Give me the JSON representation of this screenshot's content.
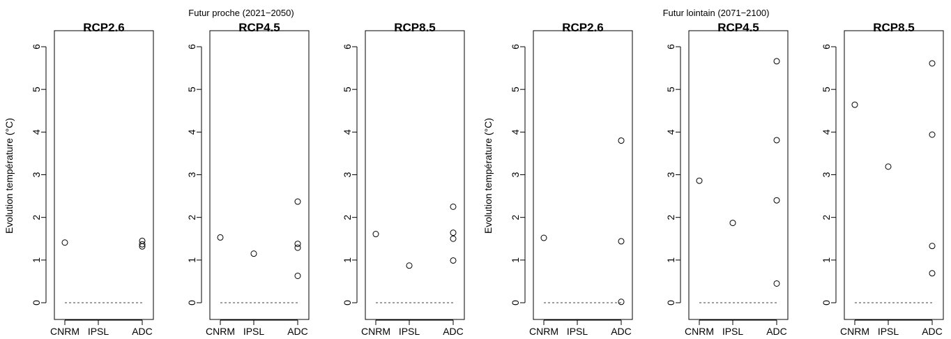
{
  "chart_data": [
    {
      "type": "scatter",
      "group": "Futur proche (2021−2050)",
      "title": "RCP2.6",
      "ylabel": "Evolution température (°C)",
      "categories": [
        "CNRM",
        "IPSL",
        "ADC"
      ],
      "ylim": [
        0,
        6
      ],
      "yticks": [
        0,
        1,
        2,
        3,
        4,
        5,
        6
      ],
      "reference_line": 0,
      "points": [
        {
          "x": "CNRM",
          "y": 1.41
        },
        {
          "x": "ADC",
          "y": 1.45
        },
        {
          "x": "ADC",
          "y": 1.37
        },
        {
          "x": "ADC",
          "y": 1.32
        }
      ]
    },
    {
      "type": "scatter",
      "group": "Futur proche (2021−2050)",
      "title": "RCP4.5",
      "ylabel": "",
      "categories": [
        "CNRM",
        "IPSL",
        "ADC"
      ],
      "ylim": [
        0,
        6
      ],
      "yticks": [
        0,
        1,
        2,
        3,
        4,
        5,
        6
      ],
      "reference_line": 0,
      "points": [
        {
          "x": "CNRM",
          "y": 1.53
        },
        {
          "x": "IPSL",
          "y": 1.15
        },
        {
          "x": "ADC",
          "y": 2.37
        },
        {
          "x": "ADC",
          "y": 1.38
        },
        {
          "x": "ADC",
          "y": 1.29
        },
        {
          "x": "ADC",
          "y": 0.63
        }
      ]
    },
    {
      "type": "scatter",
      "group": "Futur proche (2021−2050)",
      "title": "RCP8.5",
      "ylabel": "",
      "categories": [
        "CNRM",
        "IPSL",
        "ADC"
      ],
      "ylim": [
        0,
        6
      ],
      "yticks": [
        0,
        1,
        2,
        3,
        4,
        5,
        6
      ],
      "reference_line": 0,
      "points": [
        {
          "x": "CNRM",
          "y": 1.61
        },
        {
          "x": "IPSL",
          "y": 0.87
        },
        {
          "x": "ADC",
          "y": 2.25
        },
        {
          "x": "ADC",
          "y": 1.64
        },
        {
          "x": "ADC",
          "y": 1.5
        },
        {
          "x": "ADC",
          "y": 0.99
        }
      ]
    },
    {
      "type": "scatter",
      "group": "Futur lointain (2071−2100)",
      "title": "RCP2.6",
      "ylabel": "Evolution température (°C)",
      "categories": [
        "CNRM",
        "IPSL",
        "ADC"
      ],
      "ylim": [
        0,
        6
      ],
      "yticks": [
        0,
        1,
        2,
        3,
        4,
        5,
        6
      ],
      "reference_line": 0,
      "points": [
        {
          "x": "CNRM",
          "y": 1.52
        },
        {
          "x": "ADC",
          "y": 3.8
        },
        {
          "x": "ADC",
          "y": 1.44
        },
        {
          "x": "ADC",
          "y": 0.02
        }
      ]
    },
    {
      "type": "scatter",
      "group": "Futur lointain (2071−2100)",
      "title": "RCP4.5",
      "ylabel": "",
      "categories": [
        "CNRM",
        "IPSL",
        "ADC"
      ],
      "ylim": [
        0,
        6
      ],
      "yticks": [
        0,
        1,
        2,
        3,
        4,
        5,
        6
      ],
      "reference_line": 0,
      "points": [
        {
          "x": "CNRM",
          "y": 2.86
        },
        {
          "x": "IPSL",
          "y": 1.87
        },
        {
          "x": "ADC",
          "y": 5.66
        },
        {
          "x": "ADC",
          "y": 3.81
        },
        {
          "x": "ADC",
          "y": 2.4
        },
        {
          "x": "ADC",
          "y": 0.45
        }
      ]
    },
    {
      "type": "scatter",
      "group": "Futur lointain (2071−2100)",
      "title": "RCP8.5",
      "ylabel": "",
      "categories": [
        "CNRM",
        "IPSL",
        "ADC"
      ],
      "ylim": [
        0,
        6
      ],
      "yticks": [
        0,
        1,
        2,
        3,
        4,
        5,
        6
      ],
      "reference_line": 0,
      "points": [
        {
          "x": "CNRM",
          "y": 4.64
        },
        {
          "x": "IPSL",
          "y": 3.19
        },
        {
          "x": "ADC",
          "y": 5.61
        },
        {
          "x": "ADC",
          "y": 3.94
        },
        {
          "x": "ADC",
          "y": 1.33
        },
        {
          "x": "ADC",
          "y": 0.69
        }
      ]
    }
  ],
  "group_titles": [
    "Futur proche (2021−2050)",
    "Futur lointain (2071−2100)"
  ]
}
